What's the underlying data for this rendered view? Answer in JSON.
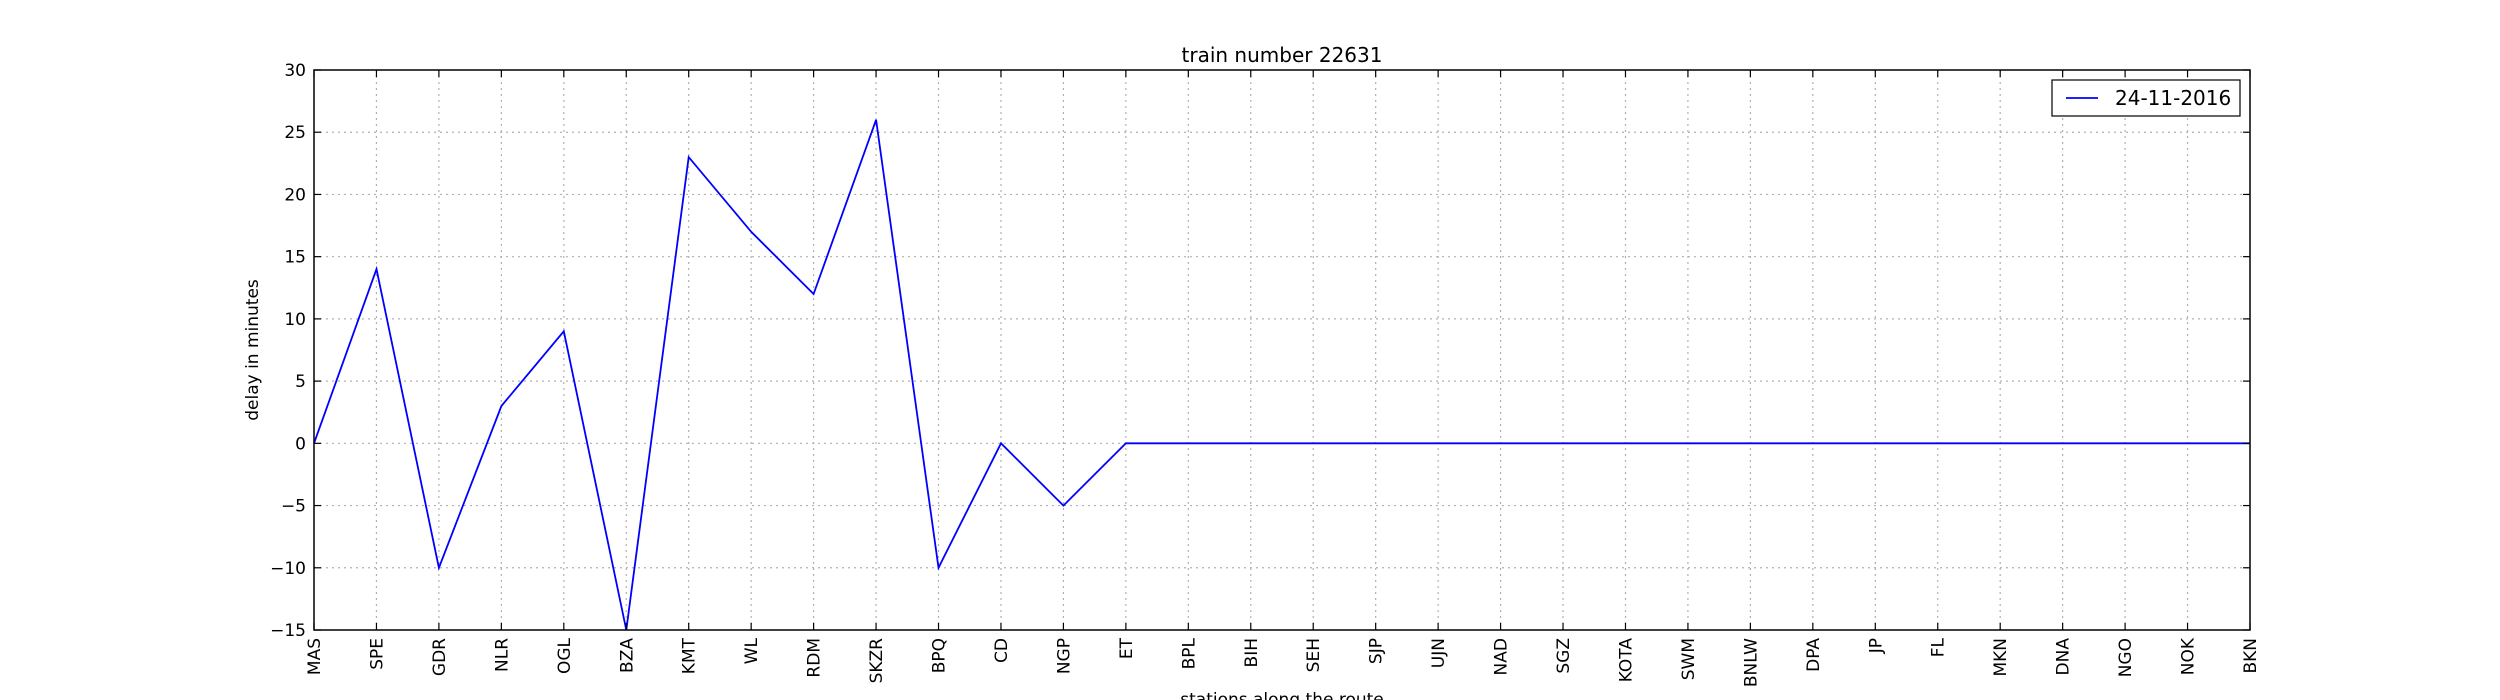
{
  "chart_data": {
    "type": "line",
    "title": "train number 22631",
    "xlabel": "stations along the route",
    "ylabel": "delay in minutes",
    "ylim": [
      -15,
      30
    ],
    "yticks": [
      -15,
      -10,
      -5,
      0,
      5,
      10,
      15,
      20,
      25,
      30
    ],
    "grid": true,
    "legend_position": "top-right",
    "categories": [
      "MAS",
      "SPE",
      "GDR",
      "NLR",
      "OGL",
      "BZA",
      "KMT",
      "WL",
      "RDM",
      "SKZR",
      "BPQ",
      "CD",
      "NGP",
      "ET",
      "BPL",
      "BIH",
      "SEH",
      "SJP",
      "UJN",
      "NAD",
      "SGZ",
      "KOTA",
      "SWM",
      "BNLW",
      "DPA",
      "JP",
      "FL",
      "MKN",
      "DNA",
      "NGO",
      "NOK",
      "BKN"
    ],
    "series": [
      {
        "name": "24-11-2016",
        "color": "#0000ff",
        "values": [
          0,
          14,
          -10,
          3,
          9,
          -15,
          23,
          17,
          12,
          26,
          -10,
          0,
          -5,
          0,
          0,
          0,
          0,
          0,
          0,
          0,
          0,
          0,
          0,
          0,
          0,
          0,
          0,
          0,
          0,
          0,
          0,
          0
        ]
      }
    ]
  }
}
